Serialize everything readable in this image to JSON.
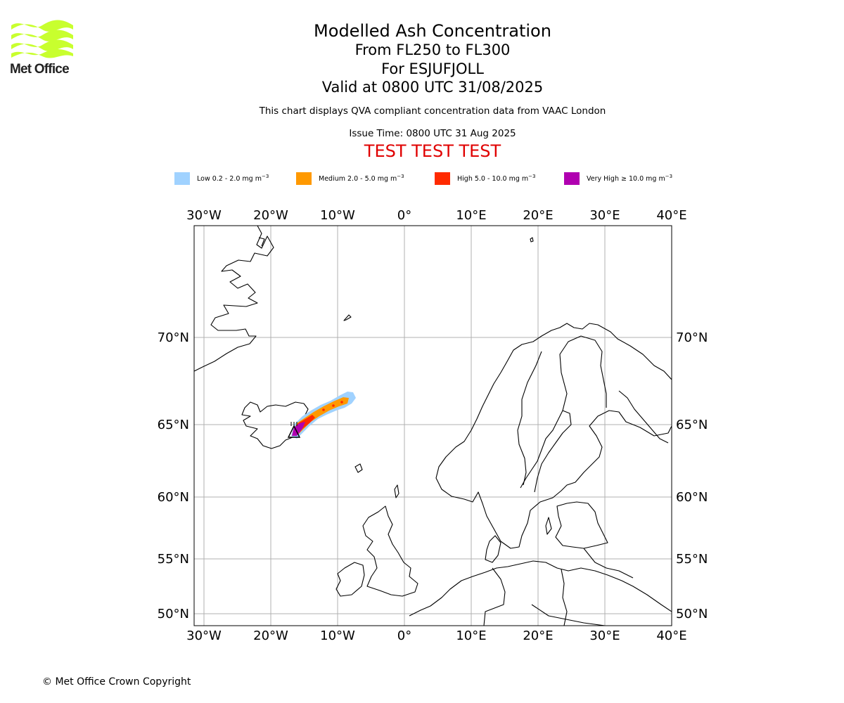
{
  "logo": {
    "text": "Met Office"
  },
  "title": {
    "main": "Modelled Ash Concentration",
    "levels": "From FL250 to FL300",
    "volcano": "For ESJUFJOLL",
    "valid": "Valid at 0800 UTC 31/08/2025",
    "note": "This chart displays QVA compliant concentration data from VAAC London",
    "issue": "Issue Time: 0800 UTC 31 Aug 2025",
    "test": "TEST TEST TEST"
  },
  "legend": [
    {
      "label": "Low 0.2 - 2.0 mg m",
      "unit_exp": "−3",
      "color": "#a0d2ff"
    },
    {
      "label": "Medium 2.0 - 5.0 mg m",
      "unit_exp": "−3",
      "color": "#ff9900"
    },
    {
      "label": "High 5.0 - 10.0 mg m",
      "unit_exp": "−3",
      "color": "#ff2a00"
    },
    {
      "label": "Very High  ≥  10.0 mg m",
      "unit_exp": "−3",
      "color": "#b000b0"
    }
  ],
  "map": {
    "lon_ticks": [
      "30°W",
      "20°W",
      "10°W",
      "0°",
      "10°E",
      "20°E",
      "30°E",
      "40°E"
    ],
    "lat_ticks": [
      "70°N",
      "65°N",
      "60°N",
      "55°N",
      "50°N"
    ],
    "extent": {
      "lon": [
        -31.5,
        40
      ],
      "lat": [
        49,
        75
      ]
    },
    "coastline_color": "#000000",
    "grid_color": "#b0b0b0",
    "volcano_marker": "triangle-icon"
  },
  "copyright": "© Met Office Crown Copyright"
}
